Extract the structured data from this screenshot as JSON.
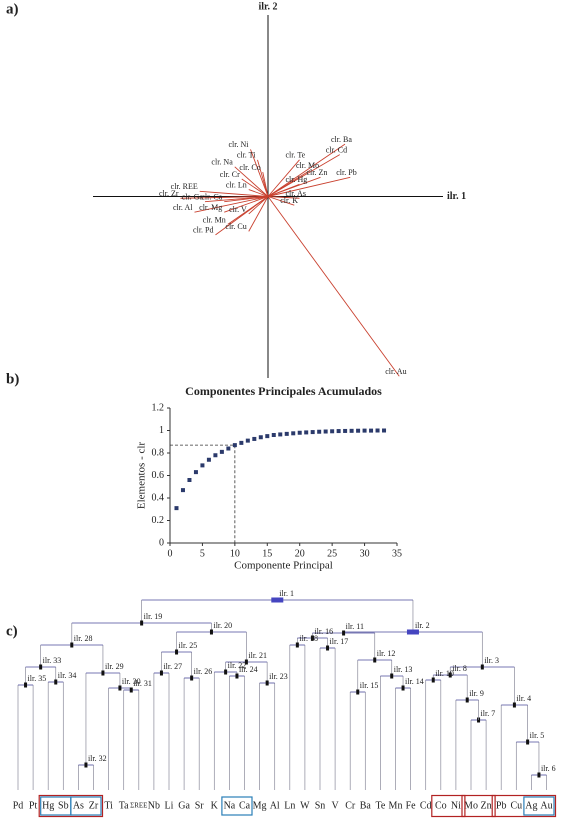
{
  "panel_labels": [
    "a)",
    "b)",
    "c)"
  ],
  "chart_data": [
    {
      "type": "biplot",
      "x_label": "ilr. 1",
      "y_label": "ilr. 2",
      "color": "#c9412f",
      "xlim": [
        -1,
        1
      ],
      "ylim": [
        -1.04,
        1.04
      ],
      "vectors": [
        {
          "name": "clr. Ba",
          "x": 0.44,
          "y": 0.3
        },
        {
          "name": "clr. Cd",
          "x": 0.41,
          "y": 0.24
        },
        {
          "name": "clr. Te",
          "x": 0.18,
          "y": 0.21
        },
        {
          "name": "clr. Mo",
          "x": 0.24,
          "y": 0.15
        },
        {
          "name": "clr. Zn",
          "x": 0.3,
          "y": 0.11
        },
        {
          "name": "clr. Pb",
          "x": 0.47,
          "y": 0.11
        },
        {
          "name": "clr. Hg",
          "x": 0.18,
          "y": 0.07
        },
        {
          "name": "clr. As",
          "x": 0.18,
          "y": -0.01
        },
        {
          "name": "clr. K",
          "x": 0.15,
          "y": -0.05
        },
        {
          "name": "clr. Ni",
          "x": -0.1,
          "y": 0.27
        },
        {
          "name": "clr. Ti",
          "x": -0.06,
          "y": 0.21
        },
        {
          "name": "clr. Co",
          "x": -0.03,
          "y": 0.14
        },
        {
          "name": "clr. Na",
          "x": -0.19,
          "y": 0.17
        },
        {
          "name": "clr. Cr",
          "x": -0.15,
          "y": 0.1
        },
        {
          "name": "clr. Ln",
          "x": -0.11,
          "y": 0.04
        },
        {
          "name": "clr. REE",
          "x": -0.39,
          "y": 0.03
        },
        {
          "name": "clr. Zr",
          "x": -0.5,
          "y": -0.01
        },
        {
          "name": "clr. Ga",
          "x": -0.36,
          "y": -0.03
        },
        {
          "name": "clr. Ca",
          "x": -0.25,
          "y": -0.03
        },
        {
          "name": "clr. Al",
          "x": -0.42,
          "y": -0.09
        },
        {
          "name": "clr. Mg",
          "x": -0.25,
          "y": -0.09
        },
        {
          "name": "clr. V",
          "x": -0.11,
          "y": -0.1
        },
        {
          "name": "clr. Mn",
          "x": -0.23,
          "y": -0.16
        },
        {
          "name": "clr. Pd",
          "x": -0.3,
          "y": -0.22
        },
        {
          "name": "clr. Cu",
          "x": -0.11,
          "y": -0.2
        },
        {
          "name": "clr. Au",
          "x": 0.75,
          "y": -1.03
        }
      ]
    },
    {
      "type": "scatter",
      "title": "Componentes Principales Acumulados",
      "x_label": "Componente Principal",
      "y_label": "Elementos - clr",
      "color": "#2b3a6b",
      "xlim": [
        0,
        35
      ],
      "ylim": [
        0,
        1.2
      ],
      "xticks": [
        0,
        5,
        10,
        15,
        20,
        25,
        30,
        35
      ],
      "yticks": [
        0,
        0.2,
        0.4,
        0.6,
        0.8,
        1,
        1.2
      ],
      "x": [
        1,
        2,
        3,
        4,
        5,
        6,
        7,
        8,
        9,
        10,
        11,
        12,
        13,
        14,
        15,
        16,
        17,
        18,
        19,
        20,
        21,
        22,
        23,
        24,
        25,
        26,
        27,
        28,
        29,
        30,
        31,
        32,
        33
      ],
      "values": [
        0.31,
        0.47,
        0.56,
        0.63,
        0.69,
        0.74,
        0.78,
        0.81,
        0.84,
        0.87,
        0.89,
        0.91,
        0.925,
        0.94,
        0.95,
        0.96,
        0.965,
        0.97,
        0.975,
        0.98,
        0.983,
        0.986,
        0.989,
        0.991,
        0.993,
        0.995,
        0.996,
        0.997,
        0.998,
        0.999,
        0.999,
        1,
        1
      ],
      "reference_point": {
        "x": 10,
        "y": 0.87
      }
    },
    {
      "type": "dendrogram",
      "leaves": [
        "Pd",
        "Pt",
        "Hg",
        "Sb",
        "As",
        "Zr",
        "Ti",
        "Ta",
        "ΣREE",
        "Nb",
        "Li",
        "Ga",
        "Sr",
        "K",
        "Na",
        "Ca",
        "Mg",
        "Al",
        "Ln",
        "W",
        "Sn",
        "V",
        "Cr",
        "Ba",
        "Te",
        "Mn",
        "Fe",
        "Cd",
        "Co",
        "Ni",
        "Mo",
        "Zn",
        "Pb",
        "Cu",
        "Ag",
        "Au"
      ],
      "node_labels": [
        "ilr. 1",
        "ilr. 2",
        "ilr. 3",
        "ilr. 4",
        "ilr. 5",
        "ilr. 6",
        "ilr. 7",
        "ilr. 8",
        "ilr. 9",
        "ilr. 10",
        "ilr. 11",
        "ilr. 12",
        "ilr. 13",
        "ilr. 14",
        "ilr. 15",
        "ilr. 16",
        "ilr. 17",
        "ilr. 18",
        "ilr. 19",
        "ilr. 20",
        "ilr. 21",
        "ilr. 22",
        "ilr. 23",
        "ilr. 24",
        "ilr. 25",
        "ilr. 26",
        "ilr. 27",
        "ilr. 28",
        "ilr. 29",
        "ilr. 30",
        "ilr. 31",
        "ilr. 32",
        "ilr. 33",
        "ilr. 34",
        "ilr. 35"
      ]
    }
  ]
}
